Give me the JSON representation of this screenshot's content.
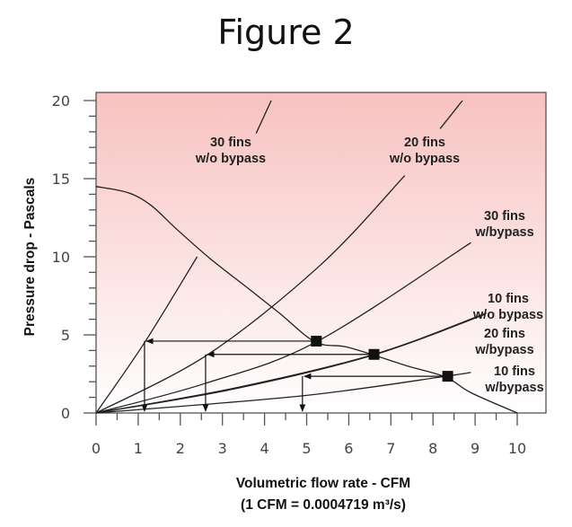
{
  "title": "Figure 2",
  "chart_data": {
    "type": "line",
    "title": "Figure 2",
    "xlabel": "Volumetric flow rate - CFM",
    "xlabel_note": "(1 CFM = 0.0004719 m³/s)",
    "ylabel": "Pressure drop - Pascals",
    "xlim": [
      0,
      10
    ],
    "ylim": [
      0,
      20
    ],
    "xticks": [
      "0",
      "1",
      "2",
      "3",
      "4",
      "5",
      "6",
      "7",
      "8",
      "9",
      "10"
    ],
    "yticks": [
      "0",
      "5",
      "10",
      "15",
      "20"
    ],
    "grid": false,
    "background": {
      "top": "#f7c2c0",
      "bottom": "#ffffff"
    },
    "fan_curve": {
      "points": [
        [
          0,
          14.5
        ],
        [
          0.76,
          14.1
        ],
        [
          1.3,
          13.3
        ],
        [
          1.9,
          11.8
        ],
        [
          2.7,
          9.9
        ],
        [
          3.6,
          8.0
        ],
        [
          4.35,
          6.4
        ],
        [
          5.2,
          4.55
        ],
        [
          5.9,
          4.25
        ],
        [
          6.6,
          3.7
        ],
        [
          7.4,
          3.0
        ],
        [
          8.3,
          2.3
        ],
        [
          8.9,
          1.3
        ],
        [
          10,
          0
        ]
      ]
    },
    "series": [
      {
        "name": "30 fins w/o bypass",
        "label_lines": [
          "30 fins",
          "w/o bypass"
        ],
        "points": [
          [
            0,
            0
          ],
          [
            1.15,
            4.5
          ],
          [
            2.4,
            10
          ],
          [
            3.24,
            15.1
          ],
          [
            3.8,
            17.9
          ],
          [
            4.16,
            20
          ]
        ]
      },
      {
        "name": "20 fins w/o bypass",
        "label_lines": [
          "20 fins",
          "w/o bypass"
        ],
        "points": [
          [
            0,
            0
          ],
          [
            2.67,
            3.77
          ],
          [
            5.34,
            9.5
          ],
          [
            7.33,
            15.2
          ],
          [
            8.17,
            18.2
          ],
          [
            8.7,
            20
          ]
        ]
      },
      {
        "name": "30 fins w/bypass",
        "label_lines": [
          "30 fins",
          "w/bypass"
        ],
        "points": [
          [
            0,
            0
          ],
          [
            2.6,
            1.9
          ],
          [
            5.23,
            4.55
          ],
          [
            8.9,
            10.9
          ]
        ]
      },
      {
        "name": "10 fins w/o bypass",
        "label_lines": [
          "10 fins",
          "w/o bypass"
        ],
        "points": [
          [
            0,
            0
          ],
          [
            3.3,
            1.6
          ],
          [
            6.6,
            3.75
          ],
          [
            9.27,
            6.4
          ]
        ]
      },
      {
        "name": "20 fins w/bypass",
        "label_lines": [
          "20 fins",
          "w/bypass"
        ],
        "points": [
          [
            0,
            0
          ],
          [
            3.3,
            1.55
          ],
          [
            6.6,
            3.72
          ],
          [
            9.22,
            6.3
          ]
        ]
      },
      {
        "name": "10 fins w/bypass",
        "label_lines": [
          "10 fins",
          "w/bypass"
        ],
        "points": [
          [
            0,
            0
          ],
          [
            4.9,
            1.1
          ],
          [
            8.3,
            2.35
          ],
          [
            8.9,
            2.6
          ]
        ]
      }
    ],
    "operating_points": [
      [
        5.23,
        4.6
      ],
      [
        6.6,
        3.75
      ],
      [
        8.35,
        2.35
      ]
    ],
    "arrows": [
      {
        "from": [
          5.2,
          4.6
        ],
        "to_x": 1.15
      },
      {
        "from": [
          6.6,
          3.75
        ],
        "to_x": 2.6
      },
      {
        "from": [
          8.3,
          2.35
        ],
        "to_x": 4.9
      }
    ]
  }
}
